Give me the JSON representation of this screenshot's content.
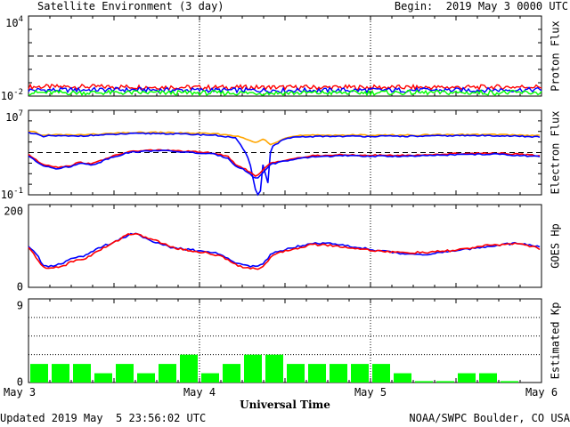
{
  "header": {
    "title": "Satellite Environment (3 day)",
    "begin": "Begin:  2019 May 3 0000 UTC"
  },
  "footer": {
    "updated": "Updated 2019 May  5 23:56:02 UTC",
    "credit": "NOAA/SWPC Boulder, CO USA"
  },
  "colors": {
    "red": "#ff0000",
    "blue": "#0000ff",
    "green": "#00ff00",
    "orange": "#ffa500",
    "kp_bar": "#00ff00"
  },
  "chart_data": [
    {
      "type": "line",
      "ylabel": "Proton Flux",
      "yscale": "log",
      "ylim": [
        0.01,
        10000
      ],
      "yticks": [
        {
          "value": 10000,
          "base": "10",
          "exp": "4"
        },
        {
          "value": 0.01,
          "base": "10",
          "exp": "-2"
        }
      ],
      "threshold": 10,
      "series": [
        {
          "color": "red",
          "x": [
            0,
            12,
            24,
            36,
            48,
            60,
            72
          ],
          "y": [
            0.05,
            0.05,
            0.045,
            0.045,
            0.045,
            0.045,
            0.05
          ]
        },
        {
          "color": "blue",
          "x": [
            0,
            12,
            24,
            36,
            48,
            60,
            72
          ],
          "y": [
            0.028,
            0.03,
            0.028,
            0.027,
            0.028,
            0.028,
            0.03
          ]
        },
        {
          "color": "green",
          "x": [
            0,
            12,
            24,
            36,
            48,
            60,
            72
          ],
          "y": [
            0.018,
            0.018,
            0.017,
            0.017,
            0.018,
            0.018,
            0.018
          ]
        }
      ]
    },
    {
      "type": "line",
      "ylabel": "Electron Flux",
      "yscale": "log",
      "ylim": [
        0.1,
        10000000
      ],
      "yticks": [
        {
          "value": 10000000,
          "base": "10",
          "exp": "7"
        },
        {
          "value": 0.1,
          "base": "10",
          "exp": "-1"
        }
      ],
      "threshold": 1000,
      "series": [
        {
          "color": "orange",
          "x": [
            0,
            1,
            2,
            3,
            6,
            10,
            14,
            18,
            22,
            26,
            29,
            31,
            32,
            33,
            34,
            36,
            38,
            42,
            48,
            54,
            60,
            66,
            72
          ],
          "y": [
            100000,
            80000,
            40000,
            50000,
            45000,
            55000,
            75000,
            80000,
            70000,
            60000,
            40000,
            15000,
            8000,
            20000,
            6000,
            25000,
            40000,
            45000,
            45000,
            45000,
            50000,
            50000,
            40000
          ]
        },
        {
          "color": "blue",
          "x": [
            0,
            1,
            2,
            3,
            6,
            10,
            14,
            18,
            22,
            26,
            29,
            30,
            31,
            32,
            32.5,
            33,
            33.5,
            34,
            36,
            38,
            42,
            48,
            54,
            60,
            66,
            72
          ],
          "y": [
            80000,
            60000,
            30000,
            40000,
            35000,
            45000,
            60000,
            65000,
            55000,
            45000,
            25000,
            3000,
            200,
            0.1,
            0.1,
            400,
            0.2,
            3000,
            20000,
            30000,
            35000,
            35000,
            35000,
            40000,
            40000,
            30000
          ]
        },
        {
          "color": "red",
          "x": [
            0,
            1,
            2,
            3,
            4,
            5,
            6,
            7,
            8,
            9,
            10,
            11,
            14,
            18,
            22,
            26,
            28,
            29,
            30,
            31,
            32,
            33,
            34,
            36,
            40,
            44,
            48,
            54,
            60,
            66,
            72
          ],
          "y": [
            700,
            200,
            80,
            60,
            40,
            50,
            60,
            120,
            100,
            90,
            160,
            300,
            1200,
            1800,
            1300,
            900,
            400,
            80,
            40,
            15,
            5,
            25,
            100,
            200,
            500,
            600,
            550,
            550,
            800,
            900,
            500
          ]
        },
        {
          "color": "blue",
          "x": [
            0,
            1,
            2,
            3,
            4,
            5,
            6,
            7,
            8,
            9,
            10,
            11,
            14,
            18,
            22,
            26,
            28,
            29,
            30,
            31,
            32,
            33,
            34,
            36,
            40,
            44,
            48,
            54,
            60,
            66,
            72
          ],
          "y": [
            500,
            150,
            60,
            45,
            30,
            40,
            45,
            100,
            80,
            70,
            120,
            250,
            1000,
            1600,
            1100,
            700,
            300,
            60,
            30,
            10,
            3,
            15,
            80,
            160,
            400,
            500,
            450,
            450,
            650,
            700,
            400
          ]
        }
      ]
    },
    {
      "type": "line",
      "ylabel": "GOES Hp",
      "ylim": [
        0,
        200
      ],
      "yticks": [
        {
          "value": 200,
          "label": "200"
        },
        {
          "value": 0,
          "label": "0"
        }
      ],
      "series": [
        {
          "color": "blue",
          "x": [
            0,
            1,
            2,
            3,
            4,
            5,
            6,
            8,
            10,
            12,
            14,
            15,
            16,
            18,
            20,
            22,
            24,
            26,
            28,
            29,
            30,
            31,
            32,
            33,
            34,
            36,
            40,
            42,
            44,
            48,
            52,
            56,
            60,
            64,
            68,
            70,
            72
          ],
          "y": [
            100,
            85,
            55,
            50,
            55,
            60,
            72,
            76,
            96,
            110,
            126,
            132,
            122,
            108,
            96,
            92,
            88,
            84,
            72,
            60,
            55,
            52,
            48,
            58,
            80,
            92,
            108,
            106,
            102,
            92,
            82,
            80,
            88,
            98,
            106,
            104,
            96
          ]
        },
        {
          "color": "red",
          "x": [
            0,
            1,
            2,
            3,
            4,
            5,
            6,
            8,
            10,
            12,
            14,
            15,
            16,
            18,
            20,
            22,
            24,
            26,
            28,
            29,
            30,
            31,
            32,
            33,
            34,
            36,
            40,
            42,
            44,
            48,
            52,
            56,
            60,
            64,
            68,
            70,
            72
          ],
          "y": [
            95,
            75,
            48,
            45,
            50,
            52,
            62,
            70,
            90,
            108,
            130,
            128,
            124,
            112,
            98,
            90,
            86,
            80,
            68,
            56,
            50,
            46,
            44,
            52,
            74,
            88,
            104,
            102,
            98,
            90,
            84,
            84,
            90,
            100,
            106,
            102,
            92
          ]
        }
      ]
    },
    {
      "type": "bar",
      "ylabel": "Estimated Kp",
      "ylim": [
        0,
        9
      ],
      "yticks": [
        {
          "value": 9,
          "label": "9"
        },
        {
          "value": 0,
          "label": "0"
        }
      ],
      "bar_width_hours": 3,
      "x": [
        0,
        3,
        6,
        9,
        12,
        15,
        18,
        21,
        24,
        27,
        30,
        33,
        36,
        39,
        42,
        45,
        48,
        51,
        54,
        57,
        60,
        63,
        66,
        69
      ],
      "values": [
        2,
        2,
        2,
        1,
        2,
        1,
        2,
        3,
        1,
        2,
        3,
        3,
        2,
        2,
        2,
        2,
        2,
        1,
        0.15,
        0.15,
        1,
        1,
        0.15,
        0
      ]
    }
  ],
  "xaxis": {
    "label": "Universal Time",
    "xlim": [
      0,
      72
    ],
    "ticks": [
      {
        "value": 0,
        "label": "May 3"
      },
      {
        "value": 24,
        "label": "May 4"
      },
      {
        "value": 48,
        "label": "May 5"
      },
      {
        "value": 72,
        "label": "May 6"
      }
    ]
  }
}
